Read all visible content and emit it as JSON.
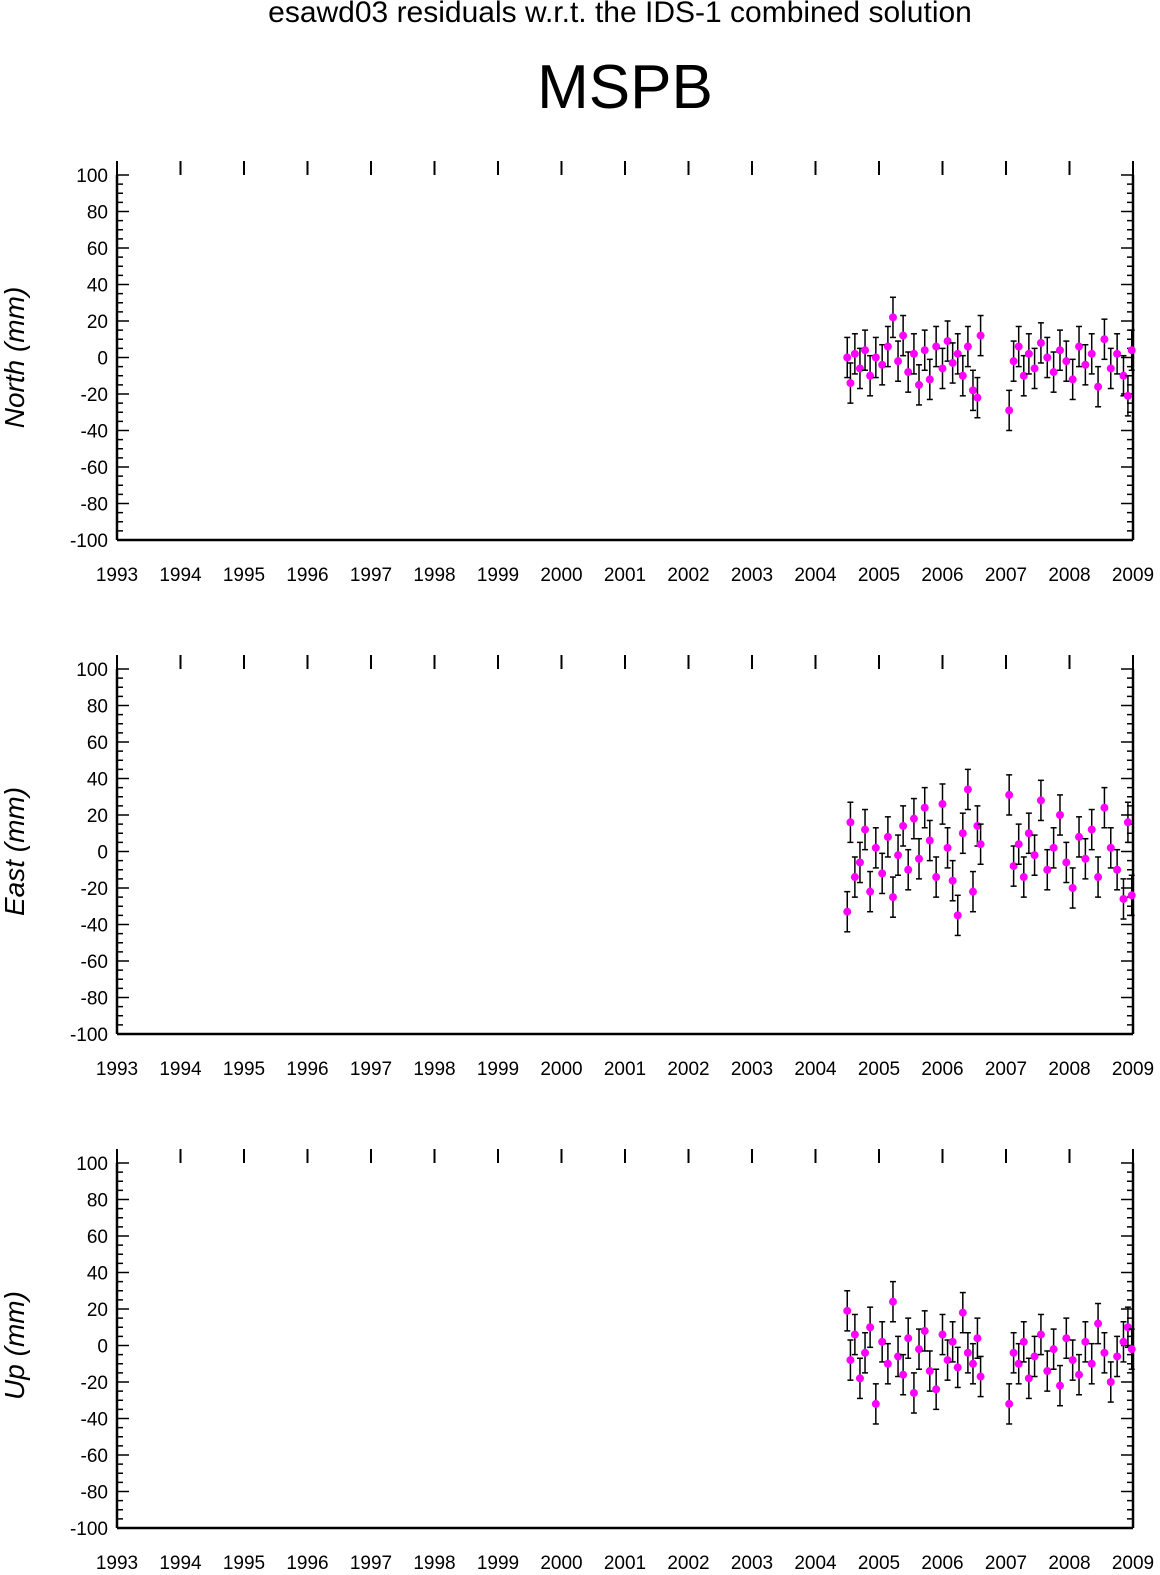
{
  "header": {
    "title": "esawd03 residuals w.r.t. the IDS-1 combined solution",
    "station": "MSPB"
  },
  "colors": {
    "point": "#ff00ff",
    "errorbar": "#000000",
    "axis": "#000000"
  },
  "chart_data": [
    {
      "type": "scatter",
      "ylabel": "North (mm)",
      "xlim": [
        1993,
        2009
      ],
      "ylim": [
        -100,
        100
      ],
      "xticks": [
        1993,
        1994,
        1995,
        1996,
        1997,
        1998,
        1999,
        2000,
        2001,
        2002,
        2003,
        2004,
        2005,
        2006,
        2007,
        2008,
        2009
      ],
      "yticks": [
        100,
        80,
        60,
        40,
        20,
        0,
        -20,
        -40,
        -60,
        -80,
        -100
      ],
      "grid": false,
      "series": [
        {
          "error_bars": true,
          "points": [
            [
              2004.5,
              0
            ],
            [
              2004.55,
              -14
            ],
            [
              2004.62,
              2
            ],
            [
              2004.7,
              -6
            ],
            [
              2004.78,
              4
            ],
            [
              2004.86,
              -10
            ],
            [
              2004.95,
              0
            ],
            [
              2005.05,
              -4
            ],
            [
              2005.14,
              6
            ],
            [
              2005.22,
              22
            ],
            [
              2005.3,
              -2
            ],
            [
              2005.38,
              12
            ],
            [
              2005.46,
              -8
            ],
            [
              2005.55,
              2
            ],
            [
              2005.63,
              -15
            ],
            [
              2005.72,
              4
            ],
            [
              2005.8,
              -12
            ],
            [
              2005.9,
              6
            ],
            [
              2006.0,
              -6
            ],
            [
              2006.08,
              9
            ],
            [
              2006.16,
              -3
            ],
            [
              2006.24,
              2
            ],
            [
              2006.32,
              -10
            ],
            [
              2006.4,
              6
            ],
            [
              2006.48,
              -18
            ],
            [
              2006.55,
              -22
            ],
            [
              2006.6,
              12
            ],
            [
              2007.05,
              -29
            ],
            [
              2007.12,
              -2
            ],
            [
              2007.2,
              6
            ],
            [
              2007.28,
              -10
            ],
            [
              2007.36,
              2
            ],
            [
              2007.45,
              -6
            ],
            [
              2007.55,
              8
            ],
            [
              2007.65,
              0
            ],
            [
              2007.75,
              -8
            ],
            [
              2007.85,
              4
            ],
            [
              2007.95,
              -2
            ],
            [
              2008.05,
              -12
            ],
            [
              2008.15,
              6
            ],
            [
              2008.25,
              -4
            ],
            [
              2008.35,
              2
            ],
            [
              2008.45,
              -16
            ],
            [
              2008.55,
              10
            ],
            [
              2008.65,
              -6
            ],
            [
              2008.75,
              2
            ],
            [
              2008.85,
              -10
            ],
            [
              2008.92,
              -21
            ],
            [
              2008.98,
              4
            ]
          ]
        }
      ]
    },
    {
      "type": "scatter",
      "ylabel": "East (mm)",
      "xlim": [
        1993,
        2009
      ],
      "ylim": [
        -100,
        100
      ],
      "xticks": [
        1993,
        1994,
        1995,
        1996,
        1997,
        1998,
        1999,
        2000,
        2001,
        2002,
        2003,
        2004,
        2005,
        2006,
        2007,
        2008,
        2009
      ],
      "yticks": [
        100,
        80,
        60,
        40,
        20,
        0,
        -20,
        -40,
        -60,
        -80,
        -100
      ],
      "grid": false,
      "series": [
        {
          "error_bars": true,
          "points": [
            [
              2004.5,
              -33
            ],
            [
              2004.55,
              16
            ],
            [
              2004.62,
              -14
            ],
            [
              2004.7,
              -6
            ],
            [
              2004.78,
              12
            ],
            [
              2004.86,
              -22
            ],
            [
              2004.95,
              2
            ],
            [
              2005.05,
              -12
            ],
            [
              2005.14,
              8
            ],
            [
              2005.22,
              -25
            ],
            [
              2005.3,
              -2
            ],
            [
              2005.38,
              14
            ],
            [
              2005.46,
              -10
            ],
            [
              2005.55,
              18
            ],
            [
              2005.63,
              -4
            ],
            [
              2005.72,
              24
            ],
            [
              2005.8,
              6
            ],
            [
              2005.9,
              -14
            ],
            [
              2006.0,
              26
            ],
            [
              2006.08,
              2
            ],
            [
              2006.16,
              -16
            ],
            [
              2006.24,
              -35
            ],
            [
              2006.32,
              10
            ],
            [
              2006.4,
              34
            ],
            [
              2006.48,
              -22
            ],
            [
              2006.55,
              14
            ],
            [
              2006.6,
              4
            ],
            [
              2007.05,
              31
            ],
            [
              2007.12,
              -8
            ],
            [
              2007.2,
              4
            ],
            [
              2007.28,
              -14
            ],
            [
              2007.36,
              10
            ],
            [
              2007.45,
              -2
            ],
            [
              2007.55,
              28
            ],
            [
              2007.65,
              -10
            ],
            [
              2007.75,
              2
            ],
            [
              2007.85,
              20
            ],
            [
              2007.95,
              -6
            ],
            [
              2008.05,
              -20
            ],
            [
              2008.15,
              8
            ],
            [
              2008.25,
              -4
            ],
            [
              2008.35,
              12
            ],
            [
              2008.45,
              -14
            ],
            [
              2008.55,
              24
            ],
            [
              2008.65,
              2
            ],
            [
              2008.75,
              -10
            ],
            [
              2008.85,
              -26
            ],
            [
              2008.92,
              16
            ],
            [
              2008.98,
              -24
            ]
          ]
        }
      ]
    },
    {
      "type": "scatter",
      "ylabel": "Up (mm)",
      "xlim": [
        1993,
        2009
      ],
      "ylim": [
        -100,
        100
      ],
      "xticks": [
        1993,
        1994,
        1995,
        1996,
        1997,
        1998,
        1999,
        2000,
        2001,
        2002,
        2003,
        2004,
        2005,
        2006,
        2007,
        2008,
        2009
      ],
      "yticks": [
        100,
        80,
        60,
        40,
        20,
        0,
        -20,
        -40,
        -60,
        -80,
        -100
      ],
      "grid": false,
      "series": [
        {
          "error_bars": true,
          "points": [
            [
              2004.5,
              19
            ],
            [
              2004.55,
              -8
            ],
            [
              2004.62,
              6
            ],
            [
              2004.7,
              -18
            ],
            [
              2004.78,
              -4
            ],
            [
              2004.86,
              10
            ],
            [
              2004.95,
              -32
            ],
            [
              2005.05,
              2
            ],
            [
              2005.14,
              -10
            ],
            [
              2005.22,
              24
            ],
            [
              2005.3,
              -6
            ],
            [
              2005.38,
              -16
            ],
            [
              2005.46,
              4
            ],
            [
              2005.55,
              -26
            ],
            [
              2005.63,
              -2
            ],
            [
              2005.72,
              8
            ],
            [
              2005.8,
              -14
            ],
            [
              2005.9,
              -24
            ],
            [
              2006.0,
              6
            ],
            [
              2006.08,
              -8
            ],
            [
              2006.16,
              2
            ],
            [
              2006.24,
              -12
            ],
            [
              2006.32,
              18
            ],
            [
              2006.4,
              -4
            ],
            [
              2006.48,
              -10
            ],
            [
              2006.55,
              4
            ],
            [
              2006.6,
              -17
            ],
            [
              2007.05,
              -32
            ],
            [
              2007.12,
              -4
            ],
            [
              2007.2,
              -10
            ],
            [
              2007.28,
              2
            ],
            [
              2007.36,
              -18
            ],
            [
              2007.45,
              -6
            ],
            [
              2007.55,
              6
            ],
            [
              2007.65,
              -14
            ],
            [
              2007.75,
              -2
            ],
            [
              2007.85,
              -22
            ],
            [
              2007.95,
              4
            ],
            [
              2008.05,
              -8
            ],
            [
              2008.15,
              -16
            ],
            [
              2008.25,
              2
            ],
            [
              2008.35,
              -10
            ],
            [
              2008.45,
              12
            ],
            [
              2008.55,
              -4
            ],
            [
              2008.65,
              -20
            ],
            [
              2008.75,
              -6
            ],
            [
              2008.85,
              2
            ],
            [
              2008.92,
              10
            ],
            [
              2008.98,
              -2
            ]
          ]
        }
      ]
    }
  ]
}
